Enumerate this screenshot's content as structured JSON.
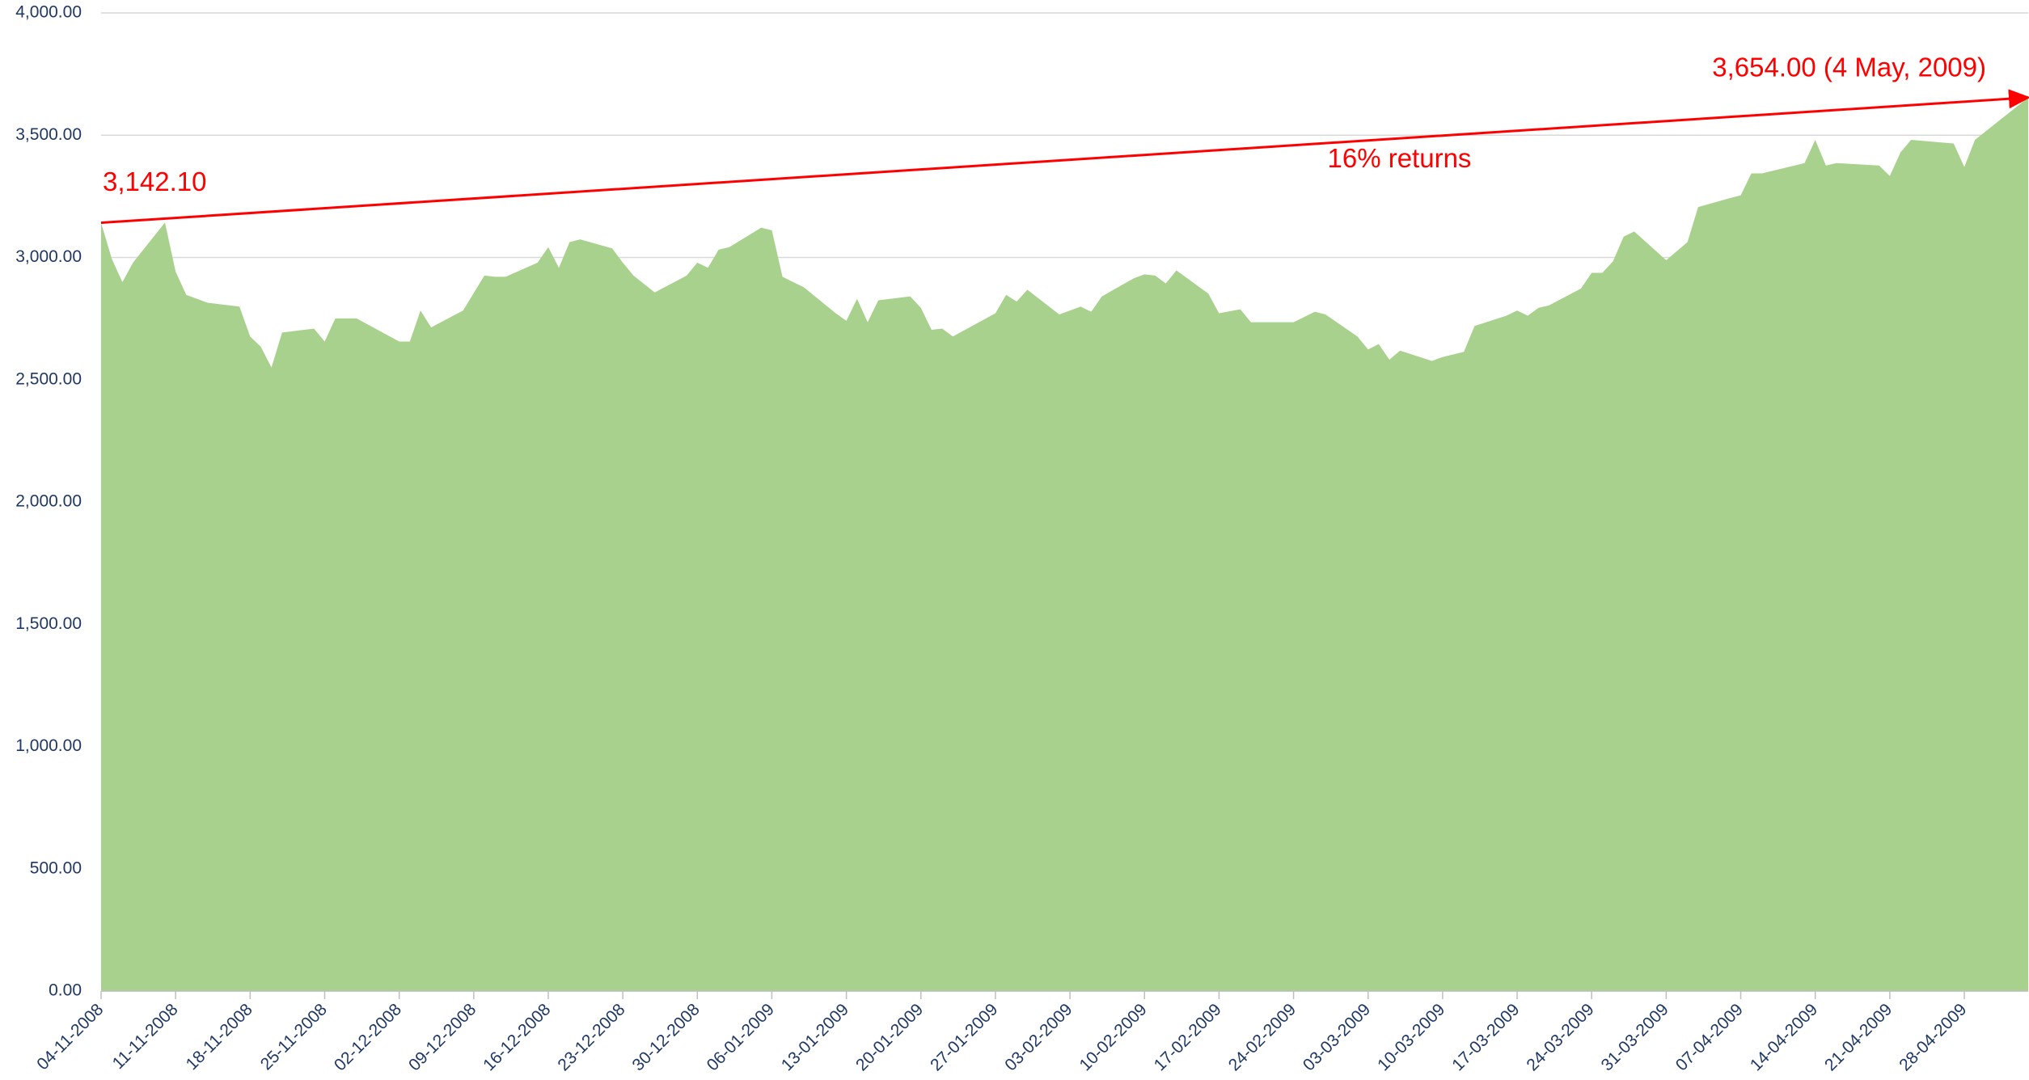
{
  "chart_data": {
    "type": "area",
    "color": "#a9d18e",
    "grid": true,
    "x": [
      "04-11-2008",
      "05-11-2008",
      "06-11-2008",
      "07-11-2008",
      "10-11-2008",
      "11-11-2008",
      "12-11-2008",
      "14-11-2008",
      "17-11-2008",
      "18-11-2008",
      "19-11-2008",
      "20-11-2008",
      "21-11-2008",
      "24-11-2008",
      "25-11-2008",
      "26-11-2008",
      "28-11-2008",
      "02-12-2008",
      "03-12-2008",
      "04-12-2008",
      "05-12-2008",
      "08-12-2008",
      "10-12-2008",
      "11-12-2008",
      "12-12-2008",
      "15-12-2008",
      "16-12-2008",
      "17-12-2008",
      "18-12-2008",
      "19-12-2008",
      "22-12-2008",
      "23-12-2008",
      "24-12-2008",
      "26-12-2008",
      "29-12-2008",
      "30-12-2008",
      "31-12-2008",
      "01-01-2009",
      "02-01-2009",
      "05-01-2009",
      "06-01-2009",
      "07-01-2009",
      "09-01-2009",
      "12-01-2009",
      "13-01-2009",
      "14-01-2009",
      "15-01-2009",
      "16-01-2009",
      "19-01-2009",
      "20-01-2009",
      "21-01-2009",
      "22-01-2009",
      "23-01-2009",
      "27-01-2009",
      "28-01-2009",
      "29-01-2009",
      "30-01-2009",
      "02-02-2009",
      "03-02-2009",
      "04-02-2009",
      "05-02-2009",
      "06-02-2009",
      "09-02-2009",
      "10-02-2009",
      "11-02-2009",
      "12-02-2009",
      "13-02-2009",
      "16-02-2009",
      "17-02-2009",
      "19-02-2009",
      "20-02-2009",
      "24-02-2009",
      "26-02-2009",
      "27-02-2009",
      "02-03-2009",
      "03-03-2009",
      "04-03-2009",
      "05-03-2009",
      "06-03-2009",
      "09-03-2009",
      "10-03-2009",
      "12-03-2009",
      "13-03-2009",
      "16-03-2009",
      "17-03-2009",
      "18-03-2009",
      "19-03-2009",
      "20-03-2009",
      "23-03-2009",
      "24-03-2009",
      "25-03-2009",
      "26-03-2009",
      "27-03-2009",
      "28-03-2009",
      "31-03-2009",
      "01-04-2009",
      "02-04-2009",
      "03-04-2009",
      "06-04-2009",
      "07-04-2009",
      "08-04-2009",
      "09-04-2009",
      "13-04-2009",
      "14-04-2009",
      "15-04-2009",
      "16-04-2009",
      "20-04-2009",
      "21-04-2009",
      "22-04-2009",
      "23-04-2009",
      "27-04-2009",
      "28-04-2009",
      "29-04-2009",
      "04-05-2009"
    ],
    "values": [
      3142.1,
      2995,
      2899,
      2979,
      3143,
      2942,
      2847,
      2815,
      2799,
      2677,
      2635,
      2550,
      2693,
      2709,
      2656,
      2751,
      2751,
      2656,
      2656,
      2783,
      2714,
      2783,
      2926,
      2921,
      2921,
      2979,
      3042,
      2958,
      3063,
      3074,
      3037,
      2979,
      2926,
      2857,
      2926,
      2979,
      2958,
      3032,
      3042,
      3122,
      3111,
      2921,
      2878,
      2772,
      2741,
      2831,
      2735,
      2825,
      2841,
      2794,
      2704,
      2709,
      2677,
      2772,
      2847,
      2820,
      2868,
      2767,
      2783,
      2799,
      2778,
      2841,
      2915,
      2931,
      2926,
      2894,
      2947,
      2852,
      2772,
      2788,
      2735,
      2735,
      2778,
      2767,
      2677,
      2624,
      2646,
      2582,
      2619,
      2577,
      2593,
      2614,
      2720,
      2762,
      2783,
      2762,
      2794,
      2804,
      2873,
      2937,
      2937,
      2984,
      3085,
      3106,
      2989,
      3026,
      3063,
      3206,
      3243,
      3254,
      3344,
      3344,
      3386,
      3481,
      3376,
      3386,
      3376,
      3333,
      3429,
      3481,
      3466,
      3370,
      3481,
      3654
    ],
    "xlim": [
      "04-11-2008",
      "04-05-2009"
    ],
    "xticks": [
      "04-11-2008",
      "11-11-2008",
      "18-11-2008",
      "25-11-2008",
      "02-12-2008",
      "09-12-2008",
      "16-12-2008",
      "23-12-2008",
      "30-12-2008",
      "06-01-2009",
      "13-01-2009",
      "20-01-2009",
      "27-01-2009",
      "03-02-2009",
      "10-02-2009",
      "17-02-2009",
      "24-02-2009",
      "03-03-2009",
      "10-03-2009",
      "17-03-2009",
      "24-03-2009",
      "31-03-2009",
      "07-04-2009",
      "14-04-2009",
      "21-04-2009",
      "28-04-2009"
    ],
    "ylim": [
      0,
      4000
    ],
    "yticks": [
      {
        "value": 0,
        "label": "0.00"
      },
      {
        "value": 500,
        "label": "500.00"
      },
      {
        "value": 1000,
        "label": "1,000.00"
      },
      {
        "value": 1500,
        "label": "1,500.00"
      },
      {
        "value": 2000,
        "label": "2,000.00"
      },
      {
        "value": 2500,
        "label": "2,500.00"
      },
      {
        "value": 3000,
        "label": "3,000.00"
      },
      {
        "value": 3500,
        "label": "3,500.00"
      },
      {
        "value": 4000,
        "label": "4,000.00"
      }
    ],
    "annotations": {
      "start": "3,142.10",
      "end": "3,654.00 (4 May, 2009)",
      "returns": "16% returns"
    }
  }
}
